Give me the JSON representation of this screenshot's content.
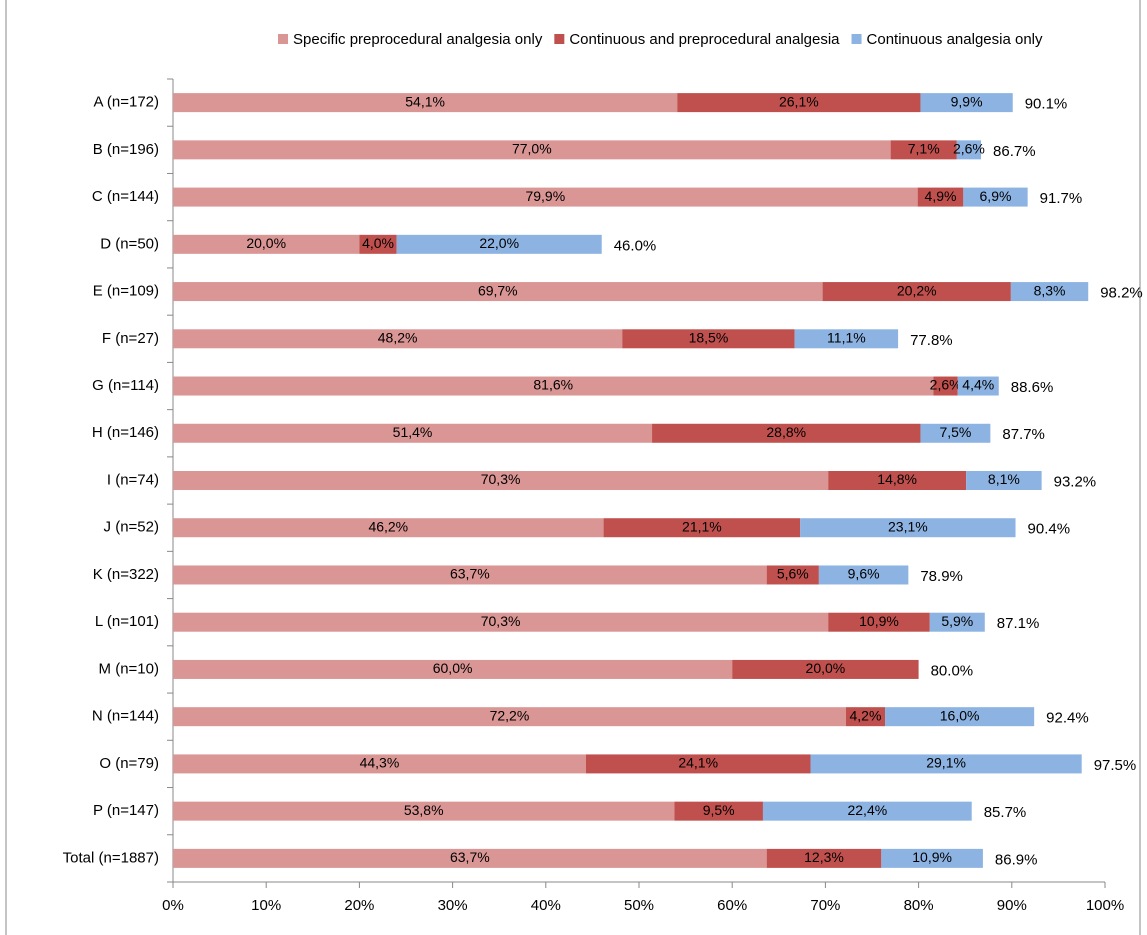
{
  "chart_data": {
    "type": "stacked_bar_horizontal",
    "categories": [
      "A (n=172)",
      "B (n=196)",
      "C (n=144)",
      "D (n=50)",
      "E (n=109)",
      "F (n=27)",
      "G (n=114)",
      "H (n=146)",
      "I (n=74)",
      "J (n=52)",
      "K (n=322)",
      "L (n=101)",
      "M (n=10)",
      "N (n=144)",
      "O (n=79)",
      "P (n=147)",
      "Total (n=1887)"
    ],
    "series": [
      {
        "name": "Specific preprocedural analgesia only",
        "color": "#d99694",
        "values": [
          54.1,
          77.0,
          79.9,
          20.0,
          69.7,
          48.2,
          81.6,
          51.4,
          70.3,
          46.2,
          63.7,
          70.3,
          60.0,
          72.2,
          44.3,
          53.8,
          63.7
        ],
        "value_labels": [
          "54,1%",
          "77,0%",
          "79,9%",
          "20,0%",
          "69,7%",
          "48,2%",
          "81,6%",
          "51,4%",
          "70,3%",
          "46,2%",
          "63,7%",
          "70,3%",
          "60,0%",
          "72,2%",
          "44,3%",
          "53,8%",
          "63,7%"
        ]
      },
      {
        "name": "Continuous and preprocedural analgesia",
        "color": "#c0504d",
        "values": [
          26.1,
          7.1,
          4.9,
          4.0,
          20.2,
          18.5,
          2.6,
          28.8,
          14.8,
          21.1,
          5.6,
          10.9,
          20.0,
          4.2,
          24.1,
          9.5,
          12.3
        ],
        "value_labels": [
          "26,1%",
          "7,1%",
          "4,9%",
          "4,0%",
          "20,2%",
          "18,5%",
          "2,6%",
          "28,8%",
          "14,8%",
          "21,1%",
          "5,6%",
          "10,9%",
          "20,0%",
          "4,2%",
          "24,1%",
          "9,5%",
          "12,3%"
        ]
      },
      {
        "name": "Continuous analgesia only",
        "color": "#8db3e2",
        "values": [
          9.9,
          2.6,
          6.9,
          22.0,
          8.3,
          11.1,
          4.4,
          7.5,
          8.1,
          23.1,
          9.6,
          5.9,
          null,
          16.0,
          29.1,
          22.4,
          10.9
        ],
        "value_labels": [
          "9,9%",
          "2,6%",
          "6,9%",
          "22,0%",
          "8,3%",
          "11,1%",
          "4,4%",
          "7,5%",
          "8,1%",
          "23,1%",
          "9,6%",
          "5,9%",
          null,
          "16,0%",
          "29,1%",
          "22,4%",
          "10,9%"
        ]
      }
    ],
    "totals": [
      90.1,
      86.7,
      91.7,
      46.0,
      98.2,
      77.8,
      88.6,
      87.7,
      93.2,
      90.4,
      78.9,
      87.1,
      80.0,
      92.4,
      97.5,
      85.7,
      86.9
    ],
    "totals_labels": [
      "90.1%",
      "86.7%",
      "91.7%",
      "46.0%",
      "98.2%",
      "77.8%",
      "88.6%",
      "87.7%",
      "93.2%",
      "90.4%",
      "78.9%",
      "87.1%",
      "80.0%",
      "92.4%",
      "97.5%",
      "85.7%",
      "86.9%"
    ],
    "xlim": [
      0,
      100
    ],
    "xticks": [
      {
        "value": 0,
        "label": "0%"
      },
      {
        "value": 10,
        "label": "10%"
      },
      {
        "value": 20,
        "label": "20%"
      },
      {
        "value": 30,
        "label": "30%"
      },
      {
        "value": 40,
        "label": "40%"
      },
      {
        "value": 50,
        "label": "50%"
      },
      {
        "value": 60,
        "label": "60%"
      },
      {
        "value": 70,
        "label": "70%"
      },
      {
        "value": 80,
        "label": "80%"
      },
      {
        "value": 90,
        "label": "90%"
      },
      {
        "value": 100,
        "label": "100%"
      }
    ],
    "legend": "top"
  }
}
